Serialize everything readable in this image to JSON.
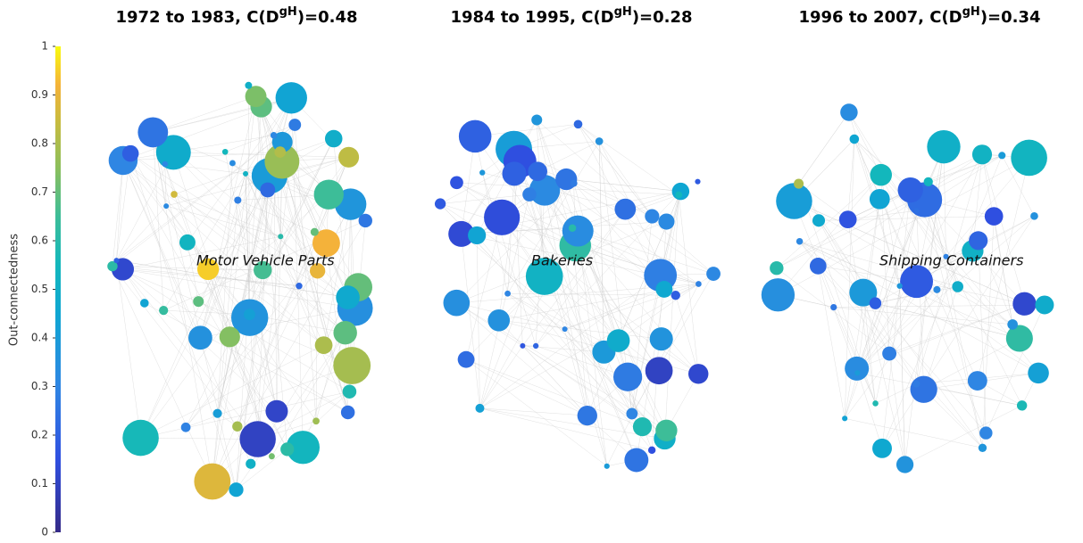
{
  "chart_data": [
    {
      "type": "colorbar",
      "label": "Out-connectedness",
      "ylim": [
        0,
        1
      ],
      "yticks": [
        0,
        0.1,
        0.2,
        0.3,
        0.4,
        0.5,
        0.6,
        0.7,
        0.8,
        0.9,
        1
      ],
      "colormap": [
        [
          0,
          "#352a87"
        ],
        [
          0.15,
          "#2f4fe0"
        ],
        [
          0.3,
          "#2f86e3"
        ],
        [
          0.45,
          "#0fa6d2"
        ],
        [
          0.55,
          "#13b7bc"
        ],
        [
          0.65,
          "#3dbd98"
        ],
        [
          0.75,
          "#8cbf5c"
        ],
        [
          0.85,
          "#cbbb3e"
        ],
        [
          0.92,
          "#f4b23a"
        ],
        [
          1,
          "#f9fb0e"
        ]
      ]
    },
    {
      "type": "network",
      "title_prefix": "1972 to 1983, C(D",
      "title_sup": "gH",
      "title_suffix": ")=0.48",
      "annotation": "Motor Vehicle Parts",
      "values": [
        0.9,
        0.81,
        0.79,
        0.77,
        0.83,
        0.79,
        0.73,
        0.69,
        0.69,
        0.72,
        0.74,
        0.7,
        0.7,
        0.69,
        0.66,
        0.65,
        0.63,
        0.61,
        0.58,
        0.6,
        0.61,
        0.55,
        0.56,
        0.52,
        0.53,
        0.54,
        0.51,
        0.5,
        0.49,
        0.47,
        0.48,
        0.44,
        0.44,
        0.44,
        0.42,
        0.41,
        0.4,
        0.38,
        0.36,
        0.34,
        0.33,
        0.32,
        0.31,
        0.29,
        0.3,
        0.27,
        0.26,
        0.25,
        0.24,
        0.22,
        0.22,
        0.2,
        0.19,
        0.12,
        0.1,
        0.11,
        0.35,
        0.37,
        0.31,
        0.28,
        0.95,
        0.88,
        0.92,
        0.86,
        0.78,
        0.8
      ]
    },
    {
      "type": "network",
      "title_prefix": "1984 to 1995, C(D",
      "title_sup": "gH",
      "title_suffix": ")=0.28",
      "annotation": "Bakeries",
      "values": [
        0.3,
        0.25,
        0.2,
        0.15,
        0.1,
        0.35,
        0.4,
        0.45,
        0.3,
        0.28,
        0.22,
        0.18,
        0.12,
        0.33,
        0.37,
        0.42,
        0.5,
        0.55,
        0.6,
        0.65,
        0.48,
        0.32,
        0.26,
        0.21,
        0.16,
        0.14,
        0.3,
        0.38,
        0.44,
        0.29,
        0.24,
        0.19,
        0.27,
        0.31,
        0.36,
        0.41,
        0.23,
        0.17,
        0.13,
        0.2,
        0.34,
        0.39,
        0.46,
        0.52,
        0.58,
        0.62,
        0.25,
        0.28,
        0.32,
        0.22,
        0.18,
        0.15,
        0.3,
        0.35,
        0.27
      ]
    },
    {
      "type": "network",
      "title_prefix": "1996 to 2007, C(D",
      "title_sup": "gH",
      "title_suffix": ")=0.34",
      "annotation": "Shipping Containers",
      "values": [
        0.2,
        0.3,
        0.4,
        0.5,
        0.55,
        0.6,
        0.45,
        0.35,
        0.25,
        0.15,
        0.8,
        0.58,
        0.52,
        0.48,
        0.42,
        0.38,
        0.33,
        0.28,
        0.22,
        0.18,
        0.12,
        0.32,
        0.36,
        0.44,
        0.47,
        0.53,
        0.57,
        0.62,
        0.26,
        0.3,
        0.34,
        0.39,
        0.41,
        0.24,
        0.21,
        0.16,
        0.29,
        0.37,
        0.43,
        0.49,
        0.51,
        0.27,
        0.31,
        0.35,
        0.19,
        0.23,
        0.46,
        0.54,
        0.4,
        0.33
      ]
    }
  ]
}
